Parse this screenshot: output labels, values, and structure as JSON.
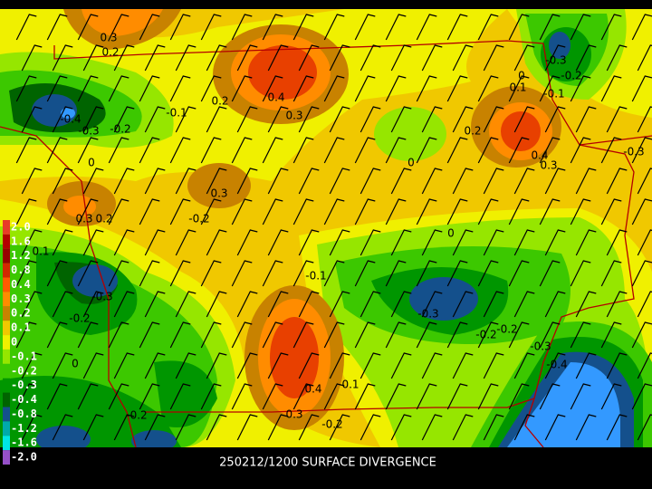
{
  "map": {
    "footer": "250212/1200 SURFACE DIVERGENCE",
    "legend": [
      {
        "label": "2.0",
        "color": "#e83c28"
      },
      {
        "label": "1.6",
        "color": "#b40000"
      },
      {
        "label": "1.2",
        "color": "#960000"
      },
      {
        "label": "0.8",
        "color": "#d22800"
      },
      {
        "label": "0.4",
        "color": "#ff5a00"
      },
      {
        "label": "0.3",
        "color": "#ff8c00"
      },
      {
        "label": "0.2",
        "color": "#c88200"
      },
      {
        "label": "0.1",
        "color": "#f0c800"
      },
      {
        "label": "0",
        "color": "#f0f000"
      },
      {
        "label": "-0.1",
        "color": "#96e600"
      },
      {
        "label": "-0.2",
        "color": "#3cc800"
      },
      {
        "label": "-0.3",
        "color": "#009600"
      },
      {
        "label": "-0.4",
        "color": "#006400"
      },
      {
        "label": "-0.8",
        "color": "#14508c"
      },
      {
        "label": "-1.2",
        "color": "#00aaaa"
      },
      {
        "label": "-1.6",
        "color": "#00e6e6"
      },
      {
        "label": "-2.0",
        "color": "#9650c8"
      }
    ],
    "contour_labels": [
      "0.3",
      "0.2",
      "0.4",
      "0.3",
      "0.2",
      "-0.1",
      "-0.4",
      "-0.3",
      "-0.2",
      "0",
      "0.3",
      "-0.2",
      "0.2",
      "0.3",
      "0.1",
      "0",
      "0.2",
      "0.4",
      "0.3",
      "-0.3",
      "-0.2",
      "-0.1",
      "0.1",
      "0",
      "-0.3",
      "0",
      "-0.1",
      "-0.3",
      "-0.2",
      "-0.2",
      "-0.3",
      "-0.4",
      "-0.3",
      "-0.2",
      "0",
      "-0.2",
      "0.4",
      "0.1",
      "0.3",
      "-0.2"
    ]
  }
}
